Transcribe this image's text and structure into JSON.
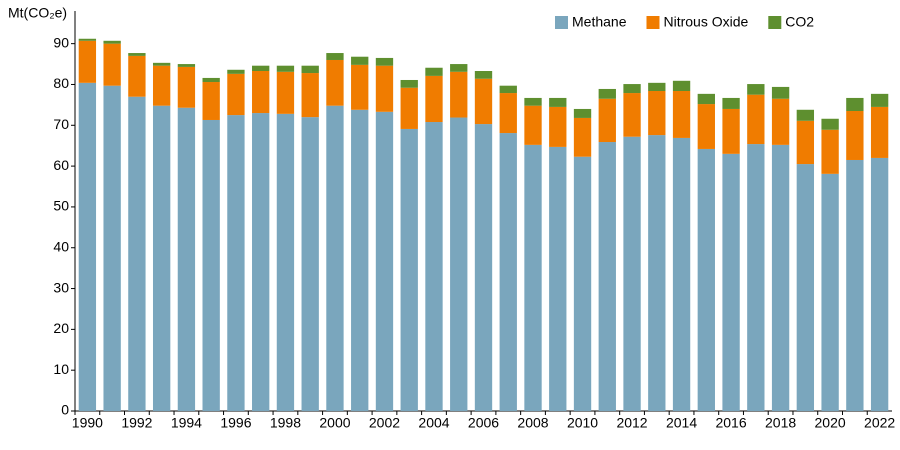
{
  "chart_data": {
    "type": "stacked-bar",
    "y_label": "Mt(CO₂e)",
    "categories": [
      "1990",
      null,
      "1992",
      null,
      "1994",
      null,
      "1996",
      null,
      "1998",
      null,
      "2000",
      null,
      "2002",
      null,
      "2004",
      null,
      "2006",
      null,
      "2008",
      null,
      "2010",
      null,
      "2012",
      null,
      "2014",
      null,
      "2016",
      null,
      "2018",
      null,
      "2020",
      null,
      "2022"
    ],
    "series": [
      {
        "name": "Methane",
        "color": "#7aa6bd",
        "values": [
          80.4,
          79.7,
          77,
          74.8,
          74.3,
          71.3,
          72.5,
          73,
          72.8,
          72,
          74.8,
          73.8,
          73.3,
          69.1,
          70.8,
          71.9,
          70.3,
          68.1,
          65.2,
          64.7,
          62.3,
          65.9,
          67.2,
          67.6,
          66.9,
          64.2,
          63,
          65.4,
          65.2,
          60.5,
          58.1,
          61.5,
          62
        ]
      },
      {
        "name": "Nitrous Oxide",
        "color": "#f07c00",
        "values": [
          10.3,
          10.3,
          10,
          9.8,
          10,
          9.3,
          10.1,
          10.3,
          10.3,
          10.8,
          11.2,
          11,
          11.3,
          10.1,
          11.3,
          11.2,
          11.1,
          9.8,
          9.6,
          9.8,
          9.5,
          10.6,
          10.7,
          10.8,
          11.5,
          11,
          11,
          12.1,
          11.3,
          10.6,
          10.8,
          12,
          12.5
        ]
      },
      {
        "name": "CO2",
        "color": "#5e8f2f",
        "values": [
          0.5,
          0.7,
          0.7,
          0.7,
          0.7,
          1,
          1,
          1.3,
          1.5,
          1.8,
          1.7,
          2,
          1.9,
          1.9,
          2,
          1.9,
          1.9,
          1.8,
          1.9,
          2.2,
          2.2,
          2.4,
          2.2,
          2,
          2.5,
          2.5,
          2.7,
          2.6,
          2.9,
          2.7,
          2.7,
          3.2,
          3.2
        ]
      }
    ],
    "ylim": [
      0,
      98
    ],
    "yticks": [
      0,
      10,
      20,
      30,
      40,
      50,
      60,
      70,
      80,
      90
    ],
    "grid": false,
    "legend": "top-right"
  }
}
